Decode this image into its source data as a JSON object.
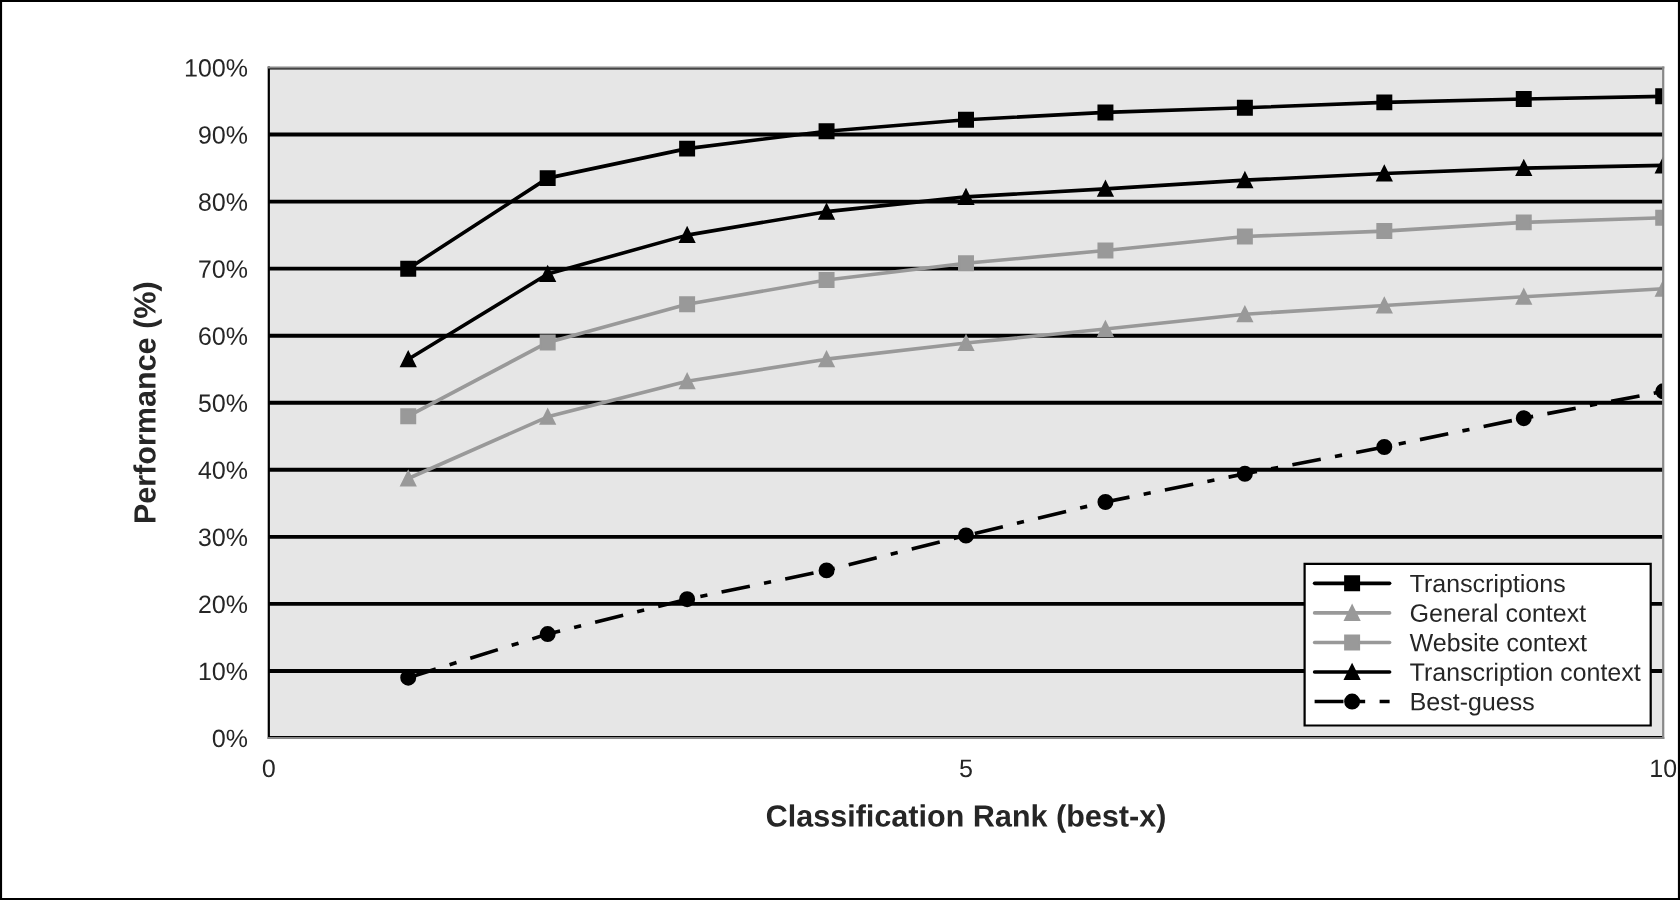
{
  "chart_data": {
    "type": "line",
    "xlabel": "Classification Rank (best-x)",
    "ylabel": "Performance (%)",
    "x": [
      1,
      2,
      3,
      4,
      5,
      6,
      7,
      8,
      9,
      10
    ],
    "series": [
      {
        "name": "Transcriptions",
        "color": "#000000",
        "marker": "square",
        "line_style": "solid",
        "values": [
          70,
          83.5,
          87.9,
          90.5,
          92.2,
          93.3,
          94,
          94.8,
          95.3,
          95.7
        ]
      },
      {
        "name": "General context",
        "color": "#999999",
        "marker": "triangle",
        "line_style": "solid",
        "values": [
          38.7,
          47.9,
          53.2,
          56.5,
          58.9,
          61,
          63.2,
          64.5,
          65.8,
          67
        ]
      },
      {
        "name": "Website context",
        "color": "#999999",
        "marker": "square",
        "line_style": "solid",
        "values": [
          48,
          59,
          64.7,
          68.3,
          70.8,
          72.7,
          74.8,
          75.6,
          76.9,
          77.6
        ]
      },
      {
        "name": "Transcription context",
        "color": "#000000",
        "marker": "triangle",
        "line_style": "solid",
        "values": [
          56.5,
          69.2,
          75,
          78.5,
          80.7,
          81.9,
          83.2,
          84.2,
          85,
          85.4
        ]
      },
      {
        "name": "Best-guess",
        "color": "#000000",
        "marker": "circle",
        "line_style": "dashed",
        "values": [
          9,
          15.5,
          20.7,
          25,
          30.2,
          35.2,
          39.4,
          43.4,
          47.7,
          51.7
        ]
      }
    ],
    "xlim": [
      0,
      10
    ],
    "xticks": [
      0,
      5,
      10
    ],
    "ylim": [
      0,
      100
    ],
    "yticks": [
      {
        "value": 0,
        "label": "0%"
      },
      {
        "value": 10,
        "label": "10%"
      },
      {
        "value": 20,
        "label": "20%"
      },
      {
        "value": 30,
        "label": "30%"
      },
      {
        "value": 40,
        "label": "40%"
      },
      {
        "value": 50,
        "label": "50%"
      },
      {
        "value": 60,
        "label": "60%"
      },
      {
        "value": 70,
        "label": "70%"
      },
      {
        "value": 80,
        "label": "80%"
      },
      {
        "value": 90,
        "label": "90%"
      },
      {
        "value": 100,
        "label": "100%"
      }
    ],
    "grid": "y",
    "legend": "bottom right"
  }
}
